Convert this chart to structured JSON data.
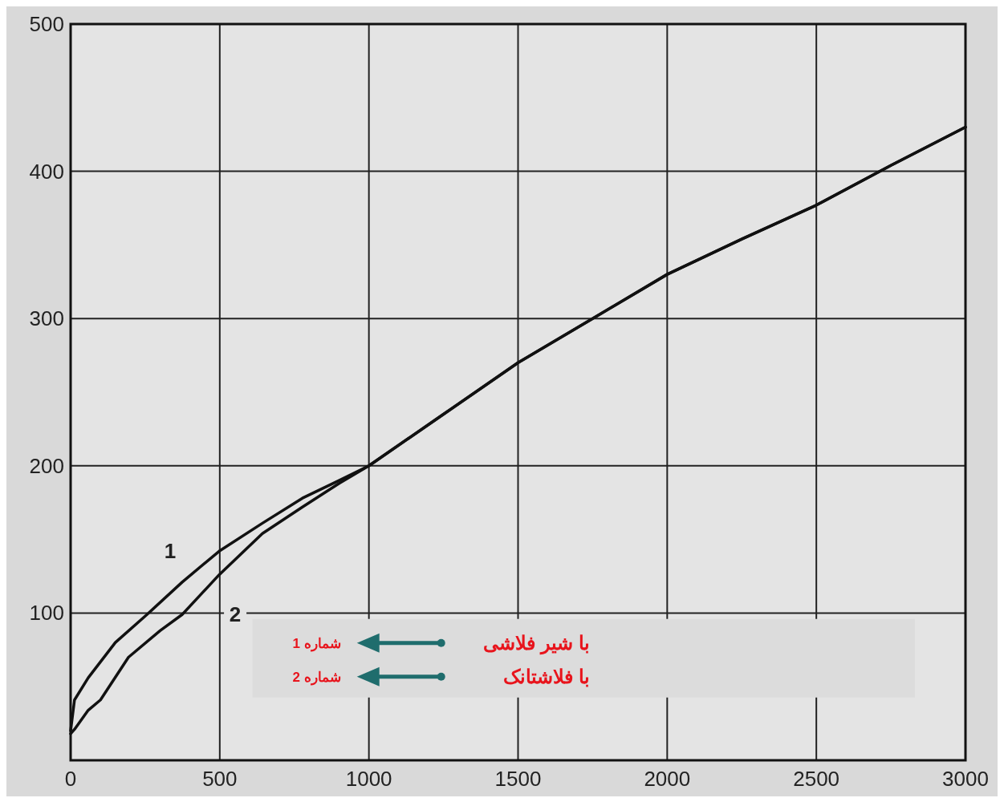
{
  "chart_data": {
    "type": "line",
    "xlim": [
      0,
      3000
    ],
    "ylim": [
      0,
      500
    ],
    "xticks": [
      0,
      500,
      1000,
      1500,
      2000,
      2500,
      3000
    ],
    "yticks": [
      100,
      200,
      300,
      400,
      500
    ],
    "grid": true,
    "marker": "none",
    "line_style": "solid",
    "series": [
      {
        "name": "1",
        "color": "#111111",
        "x": [
          0,
          13,
          59,
          150,
          256,
          374,
          498,
          643,
          777,
          900,
          1000,
          1250,
          1500,
          1750,
          2000,
          2250,
          2500,
          2750,
          3000
        ],
        "values": [
          20,
          41,
          56,
          80,
          99,
          121,
          142,
          161,
          178,
          190,
          200,
          235,
          270,
          300,
          330,
          354,
          377,
          404,
          430
        ]
      },
      {
        "name": "2",
        "color": "#111111",
        "x": [
          0,
          13,
          59,
          100,
          194,
          300,
          374,
          498,
          643,
          777,
          900,
          1000,
          1250,
          1500,
          1750,
          2000,
          2250,
          2500,
          2750,
          3000
        ],
        "values": [
          18,
          21,
          34,
          41,
          70,
          88,
          99,
          126,
          154,
          172,
          188,
          200,
          235,
          270,
          300,
          330,
          354,
          377,
          404,
          430
        ]
      }
    ],
    "annotations": [
      "شماره 1",
      "با شیر فلاشی",
      "شماره 2",
      "با فلاشتانک"
    ]
  }
}
